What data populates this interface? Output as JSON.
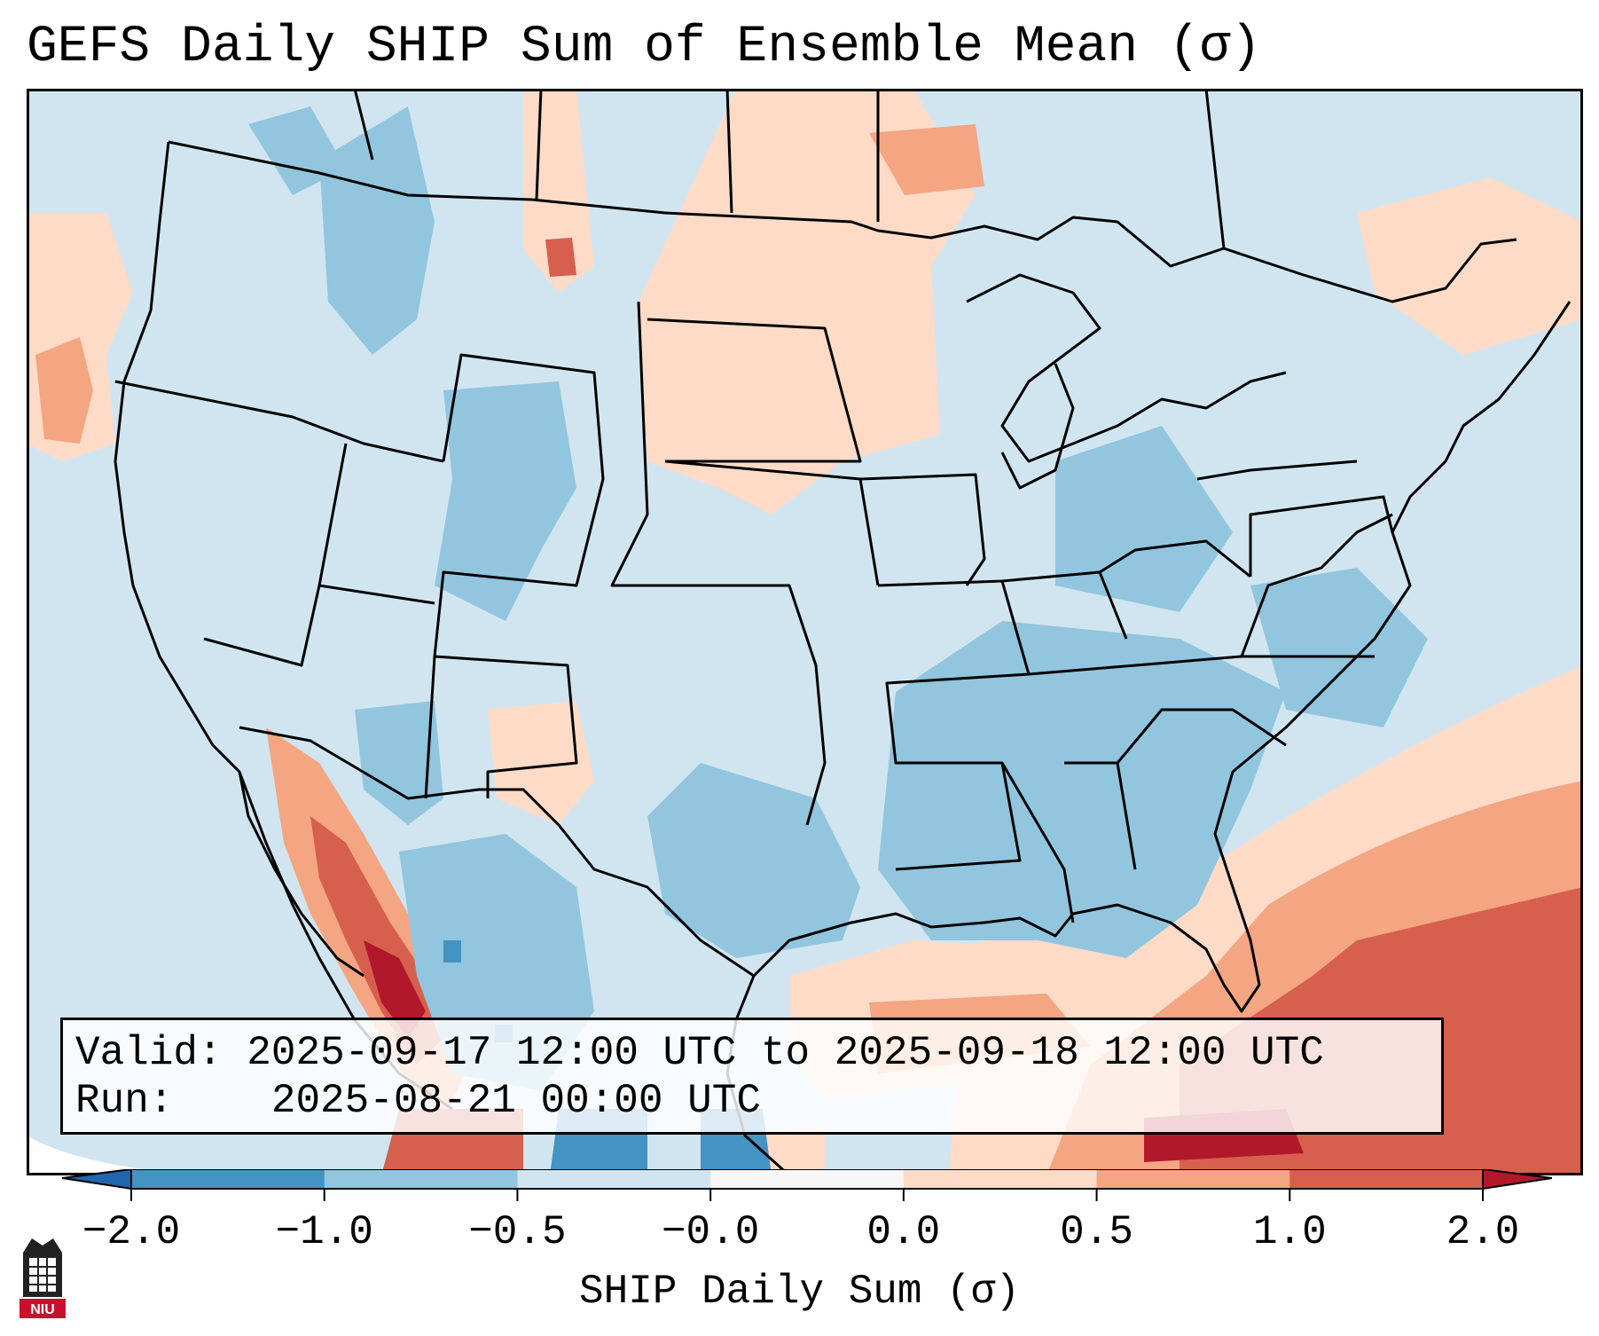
{
  "title": "GEFS Daily SHIP Sum of Ensemble Mean (σ)",
  "info": {
    "valid_label": "Valid:",
    "valid_text": "2025-09-17 12:00 UTC to 2025-09-18 12:00 UTC",
    "run_label": "Run:",
    "run_text": "2025-08-21 00:00 UTC"
  },
  "colorbar": {
    "label": "SHIP Daily Sum (σ)",
    "ticks": [
      "−2.0",
      "−1.0",
      "−0.5",
      "−0.0",
      "0.0",
      "0.5",
      "1.0",
      "2.0"
    ],
    "colors": [
      "#4393c3",
      "#92c5de",
      "#d1e5f0",
      "#f7f7f7",
      "#fddbc7",
      "#f4a582",
      "#d6604d"
    ],
    "extend_low": "#2166ac",
    "extend_high": "#b2182b"
  },
  "logo": {
    "text": "NIU",
    "color": "#c8102e"
  },
  "legend_colors": {
    "background": "#d1e5f0",
    "negative_1": "#92c5de",
    "negative_2": "#4393c3",
    "positive_1": "#fddbc7",
    "positive_2": "#f4a582",
    "positive_3": "#d6604d",
    "positive_4": "#b2182b"
  }
}
